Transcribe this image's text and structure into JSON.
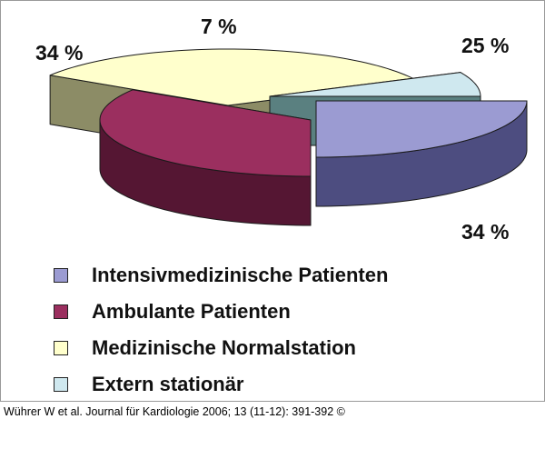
{
  "chart_data": {
    "type": "pie",
    "title": "",
    "categories": [
      "Intensivmedizinische Patienten",
      "Ambulante Patienten",
      "Medizinische Normalstation",
      "Extern stationär"
    ],
    "values": [
      25,
      34,
      34,
      7
    ],
    "data_labels": [
      "25 %",
      "34 %",
      "34 %",
      "7 %"
    ],
    "colors": {
      "top": [
        "#9b9bd2",
        "#9b2f5f",
        "#ffffcc",
        "#cfe8ef"
      ],
      "side": [
        "#4d4d80",
        "#551633",
        "#8c8c66",
        "#5a8080"
      ]
    },
    "legend_position": "bottom",
    "legend": [
      {
        "label": "Intensivmedizinische Patienten",
        "color": "#9b9bd2"
      },
      {
        "label": "Ambulante Patienten",
        "color": "#9b2f5f"
      },
      {
        "label": "Medizinische Normalstation",
        "color": "#ffffcc"
      },
      {
        "label": "Extern stationär",
        "color": "#cfe8ef"
      }
    ]
  },
  "citation": "Wührer W et al. Journal für Kardiologie 2006; 13 (11-12): 391-392 ©"
}
